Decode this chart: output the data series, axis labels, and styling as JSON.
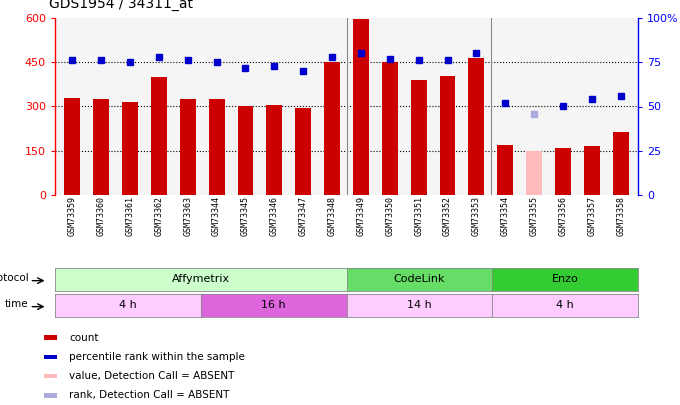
{
  "title": "GDS1954 / 34311_at",
  "samples": [
    "GSM73359",
    "GSM73360",
    "GSM73361",
    "GSM73362",
    "GSM73363",
    "GSM73344",
    "GSM73345",
    "GSM73346",
    "GSM73347",
    "GSM73348",
    "GSM73349",
    "GSM73350",
    "GSM73351",
    "GSM73352",
    "GSM73353",
    "GSM73354",
    "GSM73355",
    "GSM73356",
    "GSM73357",
    "GSM73358"
  ],
  "count_values": [
    330,
    325,
    315,
    400,
    325,
    325,
    300,
    305,
    295,
    450,
    595,
    450,
    390,
    405,
    465,
    170,
    null,
    160,
    165,
    215
  ],
  "count_absent": [
    false,
    false,
    false,
    false,
    false,
    false,
    false,
    false,
    false,
    false,
    false,
    false,
    false,
    false,
    false,
    false,
    true,
    false,
    false,
    false
  ],
  "count_absent_value": 150,
  "percentile_values": [
    76,
    76,
    75,
    78,
    76,
    75,
    72,
    73,
    70,
    78,
    80,
    77,
    76,
    76,
    80,
    52,
    46,
    50,
    54,
    56
  ],
  "percentile_absent": [
    false,
    false,
    false,
    false,
    false,
    false,
    false,
    false,
    false,
    false,
    false,
    false,
    false,
    false,
    false,
    false,
    true,
    false,
    false,
    false
  ],
  "ylim_left": [
    0,
    600
  ],
  "ylim_right": [
    0,
    100
  ],
  "yticks_left": [
    0,
    150,
    300,
    450,
    600
  ],
  "yticks_right": [
    0,
    25,
    50,
    75,
    100
  ],
  "ytick_right_labels": [
    "0",
    "25",
    "50",
    "75",
    "100%"
  ],
  "grid_lines": [
    150,
    300,
    450
  ],
  "protocol_groups": [
    {
      "label": "Affymetrix",
      "start": 0,
      "end": 10,
      "color": "#ccffcc"
    },
    {
      "label": "CodeLink",
      "start": 10,
      "end": 15,
      "color": "#66dd66"
    },
    {
      "label": "Enzo",
      "start": 15,
      "end": 20,
      "color": "#33cc33"
    }
  ],
  "time_groups": [
    {
      "label": "4 h",
      "start": 0,
      "end": 5,
      "color": "#ffccff"
    },
    {
      "label": "16 h",
      "start": 5,
      "end": 10,
      "color": "#dd66dd"
    },
    {
      "label": "14 h",
      "start": 10,
      "end": 15,
      "color": "#ffccff"
    },
    {
      "label": "4 h",
      "start": 15,
      "end": 20,
      "color": "#ffccff"
    }
  ],
  "bar_color": "#cc0000",
  "bar_absent_color": "#ffbbbb",
  "dot_color": "#0000cc",
  "dot_absent_color": "#aaaadd",
  "bar_width": 0.55,
  "chart_bg": "#f5f5f5",
  "legend_items": [
    {
      "label": "count",
      "color": "#cc0000"
    },
    {
      "label": "percentile rank within the sample",
      "color": "#0000cc"
    },
    {
      "label": "value, Detection Call = ABSENT",
      "color": "#ffbbbb"
    },
    {
      "label": "rank, Detection Call = ABSENT",
      "color": "#aaaadd"
    }
  ]
}
